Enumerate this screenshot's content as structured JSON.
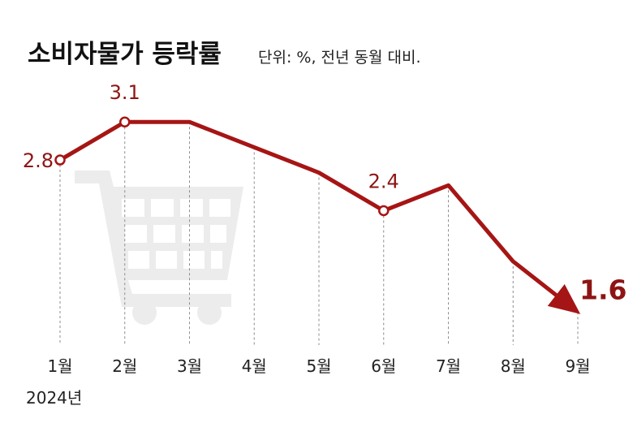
{
  "header": {
    "title": "소비자물가 등락률",
    "unit_note": "단위: %, 전년 동월 대비."
  },
  "chart_data": {
    "type": "line",
    "title": "소비자물가 등락률",
    "subtitle": "단위: %, 전년 동월 대비.",
    "year_label": "2024년",
    "categories": [
      "1월",
      "2월",
      "3월",
      "4월",
      "5월",
      "6월",
      "7월",
      "8월",
      "9월"
    ],
    "values": [
      2.8,
      3.1,
      3.1,
      2.9,
      2.7,
      2.4,
      2.6,
      2.0,
      1.6
    ],
    "data_labels": [
      {
        "index": 0,
        "text": "2.8"
      },
      {
        "index": 1,
        "text": "3.1"
      },
      {
        "index": 5,
        "text": "2.4"
      },
      {
        "index": 8,
        "text": "1.6"
      }
    ],
    "ylim": [
      1.5,
      3.3
    ],
    "grid": "vertical dashed lines per month",
    "legend": "none",
    "last_point": "arrowhead",
    "background_icon": "shopping-cart-icon",
    "colors": {
      "line": "#a61515",
      "label": "#8e1414",
      "grid": "#8c8c8c",
      "icon": "#ececec"
    }
  }
}
